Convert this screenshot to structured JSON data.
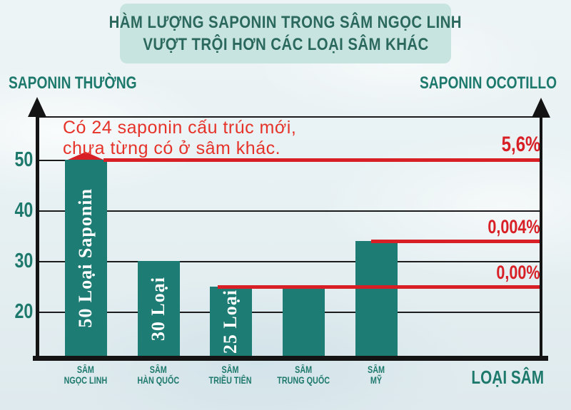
{
  "title": {
    "lines": [
      "HÀM LƯỢNG SAPONIN TRONG SÂM NGỌC LINH",
      "VƯỢT TRỘI HƠN CÁC LOẠI SÂM KHÁC"
    ]
  },
  "left_axis_label": "SAPONIN THƯỜNG",
  "right_axis_label": "SAPONIN OCOTILLO",
  "x_axis_label": "LOẠI SÂM",
  "annotation": {
    "lines": [
      "Có 24 saponin cấu trúc mới,",
      "chưa từng có ở sâm khác."
    ]
  },
  "colors": {
    "teal_text": "#1E796D",
    "bar_fill": "#1D7C74",
    "red_line": "#D81F26",
    "annotation_red": "#E6332A",
    "title_bg": "#C8E4E0",
    "title_text": "#2B685D",
    "axis_black": "#141414"
  },
  "chart_data": {
    "type": "bar",
    "title": "HÀM LƯỢNG SAPONIN TRONG SÂM NGỌC LINH VƯỢT TRỘI HƠN CÁC LOẠI SÂM KHÁC",
    "xlabel": "LOẠI SÂM",
    "grid": true,
    "legend_position": "none",
    "left_axis": {
      "label": "SAPONIN THƯỜNG",
      "y_ticks": [
        50,
        40,
        30,
        20
      ]
    },
    "right_axis": {
      "label": "SAPONIN OCOTILLO"
    },
    "categories": [
      [
        "SÂM",
        "NGỌC LINH"
      ],
      [
        "SÂM",
        "HÀN QUỐC"
      ],
      [
        "SÂM",
        "TRIỀU TIÊN"
      ],
      [
        "SÂM",
        "TRUNG QUỐC"
      ],
      [
        "SÂM",
        "MỸ"
      ]
    ],
    "series": [
      {
        "name": "SAPONIN THƯỜNG",
        "values": [
          50,
          30,
          25,
          25,
          34
        ],
        "bar_labels": [
          "50 Loại Saponin",
          "30 Loại",
          "25 Loại",
          "",
          ""
        ]
      }
    ],
    "reference_lines": [
      {
        "label": "5,6%",
        "level": 50,
        "starts_at_bar": 0,
        "peak_on_bar": true
      },
      {
        "label": "0,004%",
        "level": 34,
        "starts_at_bar": 4,
        "peak_on_bar": false
      },
      {
        "label": "0,00%",
        "level": 25,
        "starts_at_bar": 2,
        "peak_on_bar": false
      }
    ],
    "annotation": "Có 24 saponin cấu trúc mới, chưa từng có ở sâm khác."
  }
}
